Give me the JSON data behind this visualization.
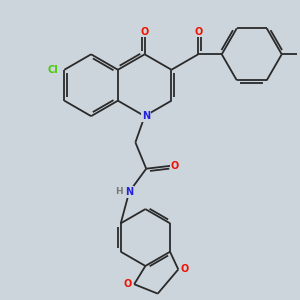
{
  "background_color": "#cdd5dc",
  "bond_color": "#2a2a2a",
  "atom_colors": {
    "O": "#ee1100",
    "N": "#2222dd",
    "Cl": "#44cc00",
    "H": "#777777",
    "C": "#2a2a2a"
  },
  "figsize": [
    3.0,
    3.0
  ],
  "dpi": 100,
  "lw": 1.3,
  "fs": 7.0
}
